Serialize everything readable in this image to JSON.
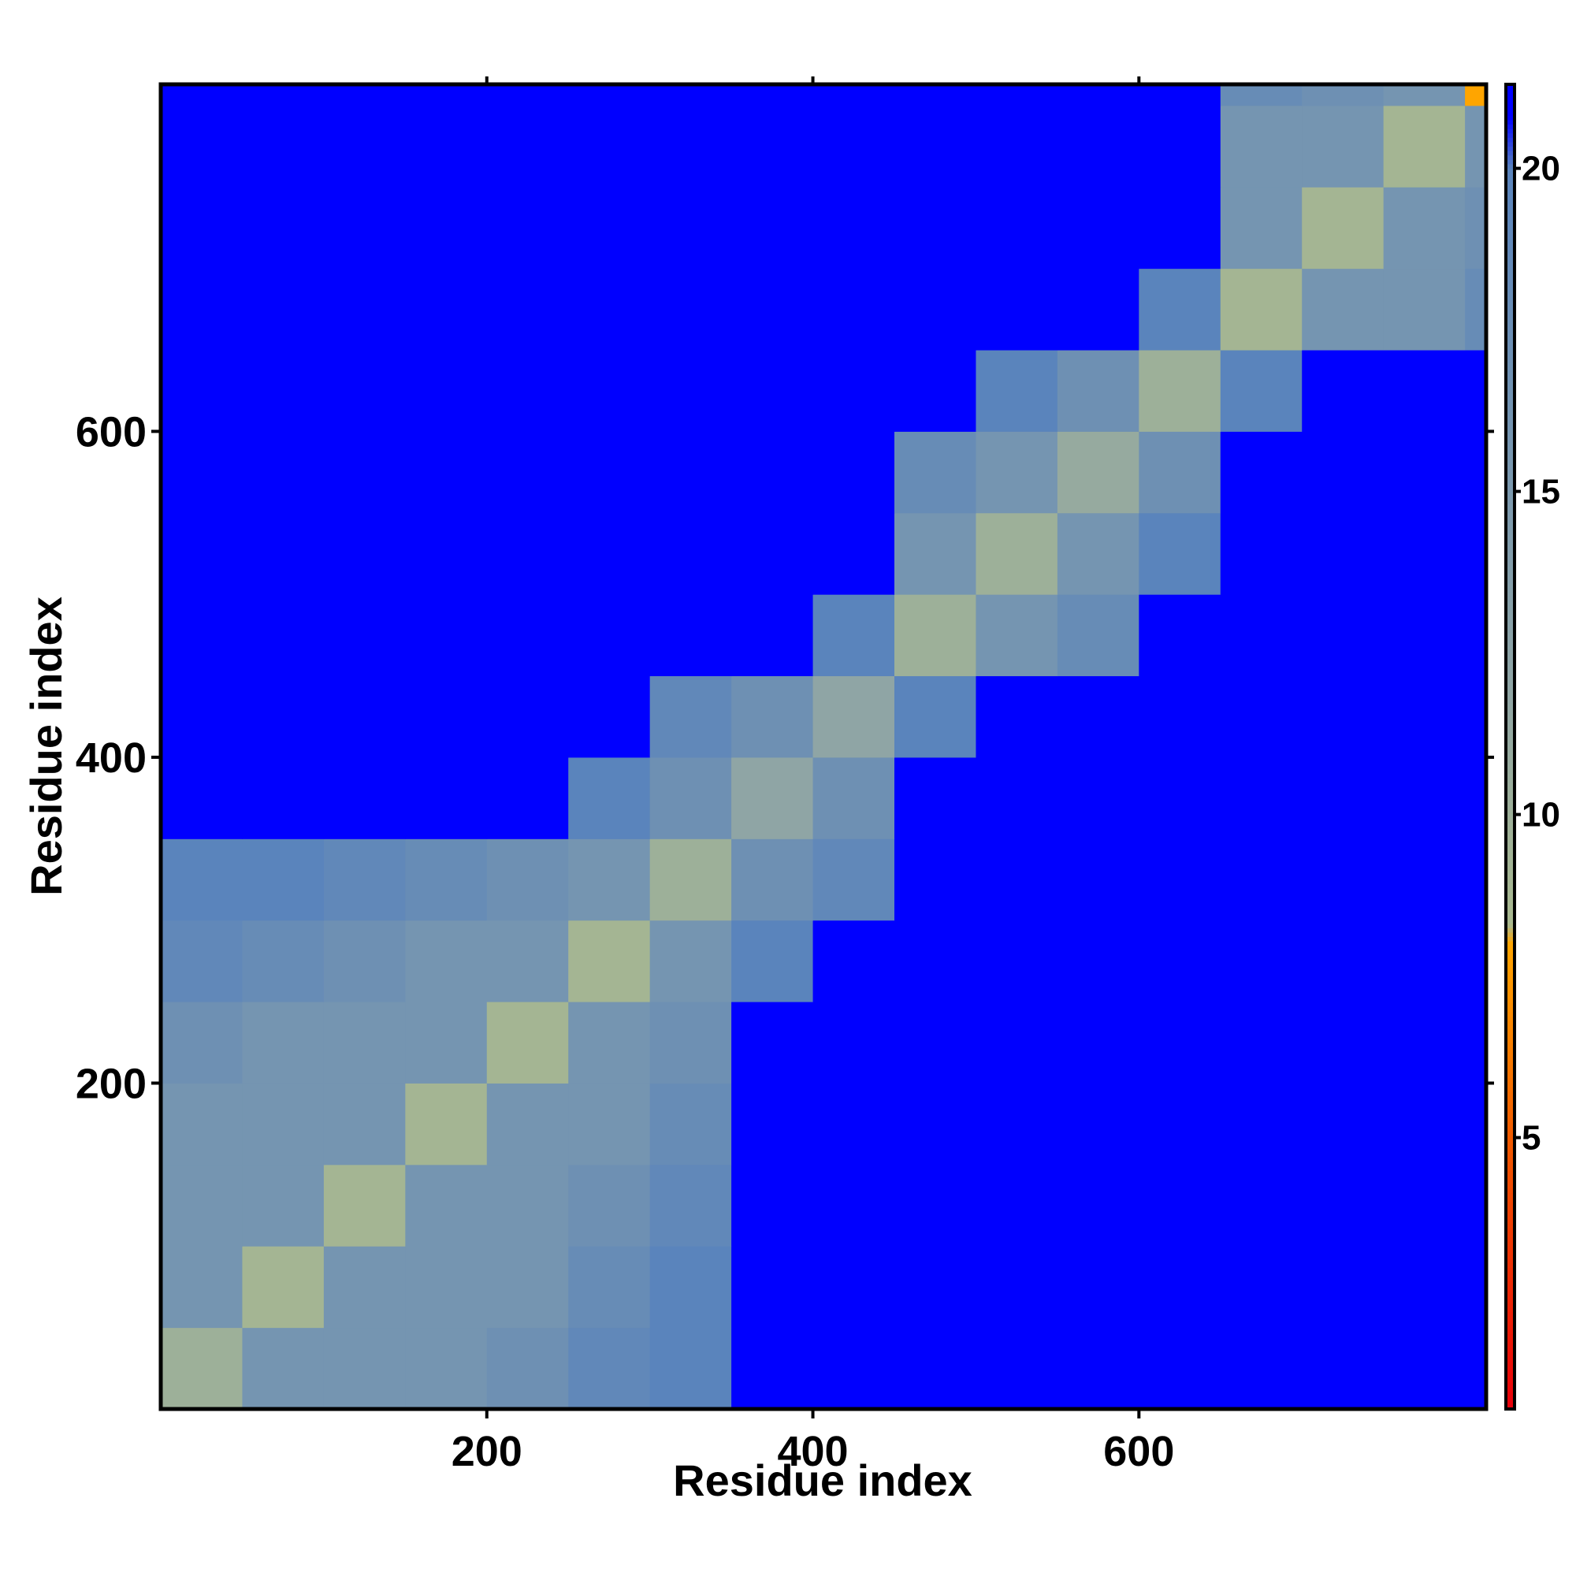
{
  "chart_data": {
    "type": "heatmap",
    "x_label": "Residue index",
    "y_label": "Residue index",
    "xlim": [
      0,
      813
    ],
    "ylim": [
      0,
      813
    ],
    "xticks": [
      200,
      400,
      600
    ],
    "yticks": [
      200,
      400,
      600
    ],
    "x_bins": [
      0,
      50,
      100,
      150,
      200,
      250,
      300,
      350,
      400,
      450,
      500,
      550,
      600,
      650,
      700,
      750,
      800,
      813
    ],
    "y_bins": [
      0,
      50,
      100,
      150,
      200,
      250,
      300,
      350,
      400,
      450,
      500,
      550,
      600,
      650,
      700,
      750,
      800,
      813
    ],
    "values": [
      [
        10,
        16,
        16,
        16,
        17,
        19,
        20,
        21,
        21,
        21,
        21,
        21,
        21,
        21,
        21,
        21,
        21
      ],
      [
        16,
        9,
        16,
        16,
        16,
        18,
        20,
        21,
        21,
        21,
        21,
        21,
        21,
        21,
        21,
        21,
        21
      ],
      [
        16,
        16,
        9,
        16,
        16,
        17,
        19,
        21,
        21,
        21,
        21,
        21,
        21,
        21,
        21,
        21,
        21
      ],
      [
        16,
        16,
        16,
        9,
        16,
        16,
        18,
        21,
        21,
        21,
        21,
        21,
        21,
        21,
        21,
        21,
        21
      ],
      [
        17,
        16,
        16,
        16,
        9,
        16,
        17,
        21,
        21,
        21,
        21,
        21,
        21,
        21,
        21,
        21,
        21
      ],
      [
        19,
        18,
        17,
        16,
        16,
        9,
        16,
        20,
        21,
        21,
        21,
        21,
        21,
        21,
        21,
        21,
        21
      ],
      [
        20,
        20,
        19,
        18,
        17,
        16,
        10,
        17,
        19,
        21,
        21,
        21,
        21,
        21,
        21,
        21,
        21
      ],
      [
        21,
        21,
        21,
        21,
        21,
        20,
        17,
        12,
        17,
        21,
        21,
        21,
        21,
        21,
        21,
        21,
        21
      ],
      [
        21,
        21,
        21,
        21,
        21,
        21,
        19,
        17,
        12,
        20,
        21,
        21,
        21,
        21,
        21,
        21,
        21
      ],
      [
        21,
        21,
        21,
        21,
        21,
        21,
        21,
        21,
        20,
        10,
        16,
        18,
        21,
        21,
        21,
        21,
        21
      ],
      [
        21,
        21,
        21,
        21,
        21,
        21,
        21,
        21,
        21,
        16,
        10,
        16,
        20,
        21,
        21,
        21,
        21
      ],
      [
        21,
        21,
        21,
        21,
        21,
        21,
        21,
        21,
        21,
        18,
        16,
        11,
        17,
        21,
        21,
        21,
        21
      ],
      [
        21,
        21,
        21,
        21,
        21,
        21,
        21,
        21,
        21,
        21,
        20,
        17,
        10,
        20,
        21,
        21,
        21
      ],
      [
        21,
        21,
        21,
        21,
        21,
        21,
        21,
        21,
        21,
        21,
        21,
        21,
        20,
        9,
        16,
        16,
        18
      ],
      [
        21,
        21,
        21,
        21,
        21,
        21,
        21,
        21,
        21,
        21,
        21,
        21,
        21,
        16,
        9,
        16,
        17
      ],
      [
        21,
        21,
        21,
        21,
        21,
        21,
        21,
        21,
        21,
        21,
        21,
        21,
        21,
        16,
        16,
        9,
        16
      ],
      [
        21,
        21,
        21,
        21,
        21,
        21,
        21,
        21,
        21,
        21,
        21,
        21,
        21,
        18,
        17,
        16,
        8
      ]
    ],
    "colorbar": {
      "lim": [
        0.8,
        21.3
      ],
      "ticks": [
        5,
        10,
        15,
        20
      ]
    },
    "colorscale": [
      {
        "value": 0.8,
        "color": "#e8000a"
      },
      {
        "value": 5,
        "color": "#f05a00"
      },
      {
        "value": 8,
        "color": "#ffa500"
      },
      {
        "value": 8.3,
        "color": "#a9b98f"
      },
      {
        "value": 12,
        "color": "#8fa5a5"
      },
      {
        "value": 20,
        "color": "#5a84bc"
      },
      {
        "value": 20.8,
        "color": "#0000ff"
      },
      {
        "value": 21.3,
        "color": "#0000ff"
      }
    ]
  }
}
